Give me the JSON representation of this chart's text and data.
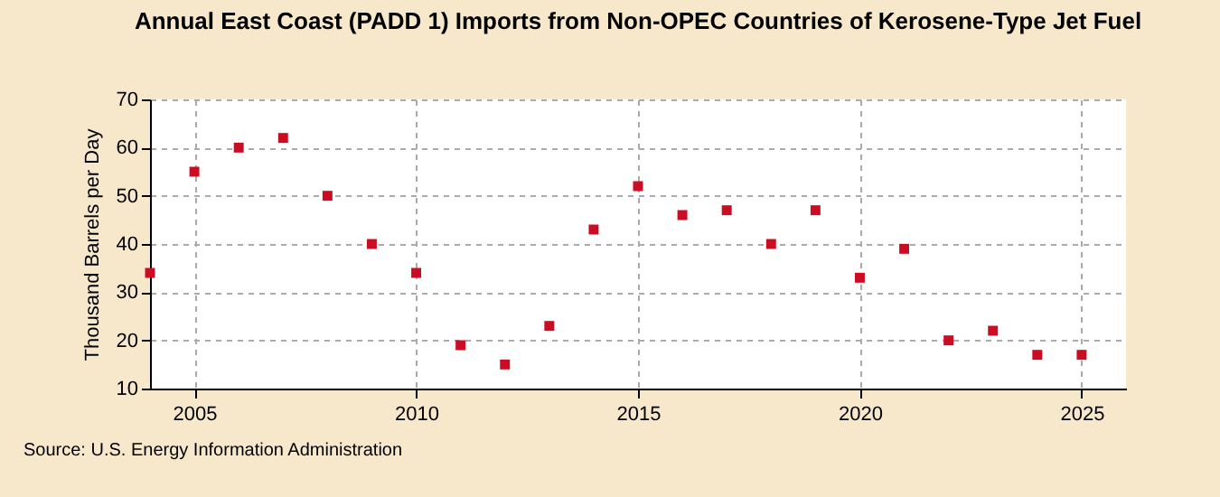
{
  "chart_data": {
    "type": "scatter",
    "title": "Annual East Coast (PADD 1) Imports from Non-OPEC Countries of Kerosene-Type Jet Fuel",
    "ylabel": "Thousand Barrels per Day",
    "annotations": [
      "Source: U.S. Energy Information Administration"
    ],
    "x": [
      2004,
      2005,
      2006,
      2007,
      2008,
      2009,
      2010,
      2011,
      2012,
      2013,
      2014,
      2015,
      2016,
      2017,
      2018,
      2019,
      2020,
      2021,
      2022,
      2023,
      2024,
      2025
    ],
    "series": [
      {
        "color": "#cc0c22",
        "values": [
          34,
          55,
          60,
          62,
          50,
          40,
          34,
          19,
          15,
          23,
          43,
          52,
          46,
          47,
          40,
          47,
          33,
          39,
          20,
          22,
          17,
          17
        ]
      }
    ],
    "xlim": [
      2004,
      2026
    ],
    "xticks": [
      2005,
      2010,
      2015,
      2020,
      2025
    ],
    "ylim": [
      10,
      70
    ],
    "yticks": [
      10,
      20,
      30,
      40,
      50,
      60,
      70
    ],
    "grid": true,
    "marker": "square",
    "legend": false
  }
}
